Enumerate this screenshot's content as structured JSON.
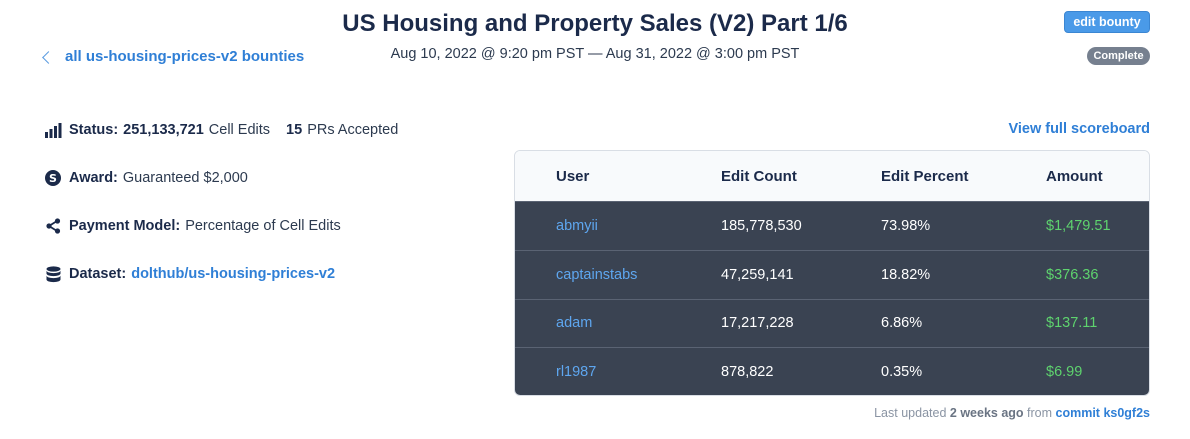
{
  "back_link": {
    "label": "all us-housing-prices-v2 bounties"
  },
  "title": "US Housing and Property Sales (V2) Part 1/6",
  "dates": "Aug 10, 2022 @ 9:20 pm PST — Aug 31, 2022 @ 3:00 pm PST",
  "edit_bounty_label": "edit bounty",
  "status_badge": "Complete",
  "info": {
    "status_label": "Status:",
    "cell_edits_count": "251,133,721",
    "cell_edits_text": "Cell Edits",
    "prs_count": "15",
    "prs_text": "PRs Accepted",
    "award_label": "Award:",
    "award_value": "Guaranteed $2,000",
    "payment_label": "Payment Model:",
    "payment_value": "Percentage of Cell Edits",
    "dataset_label": "Dataset:",
    "dataset_value": "dolthub/us-housing-prices-v2"
  },
  "scoreboard_link": "View full scoreboard",
  "table": {
    "headers": [
      "User",
      "Edit Count",
      "Edit Percent",
      "Amount"
    ],
    "rows": [
      {
        "user": "abmyii",
        "edit_count": "185,778,530",
        "edit_percent": "73.98%",
        "amount": "$1,479.51"
      },
      {
        "user": "captainstabs",
        "edit_count": "47,259,141",
        "edit_percent": "18.82%",
        "amount": "$376.36"
      },
      {
        "user": "adam",
        "edit_count": "17,217,228",
        "edit_percent": "6.86%",
        "amount": "$137.11"
      },
      {
        "user": "rl1987",
        "edit_count": "878,822",
        "edit_percent": "0.35%",
        "amount": "$6.99"
      }
    ]
  },
  "footer": {
    "prefix": "Last updated",
    "age": "2 weeks ago",
    "from": "from",
    "commit": "commit ks0gf2s"
  },
  "icons": {
    "back": "chevron-left-icon",
    "status": "bar-chart-icon",
    "award": "dollar-circle-icon",
    "payment": "share-icon",
    "dataset": "database-icon"
  },
  "colors": {
    "link": "#2f7fd6",
    "table_row_bg": "#3a4352",
    "amount_green": "#5ed36e",
    "user_link": "#5ea6ef",
    "badge_gray": "#76808f",
    "button_blue": "#4a9ae8"
  }
}
